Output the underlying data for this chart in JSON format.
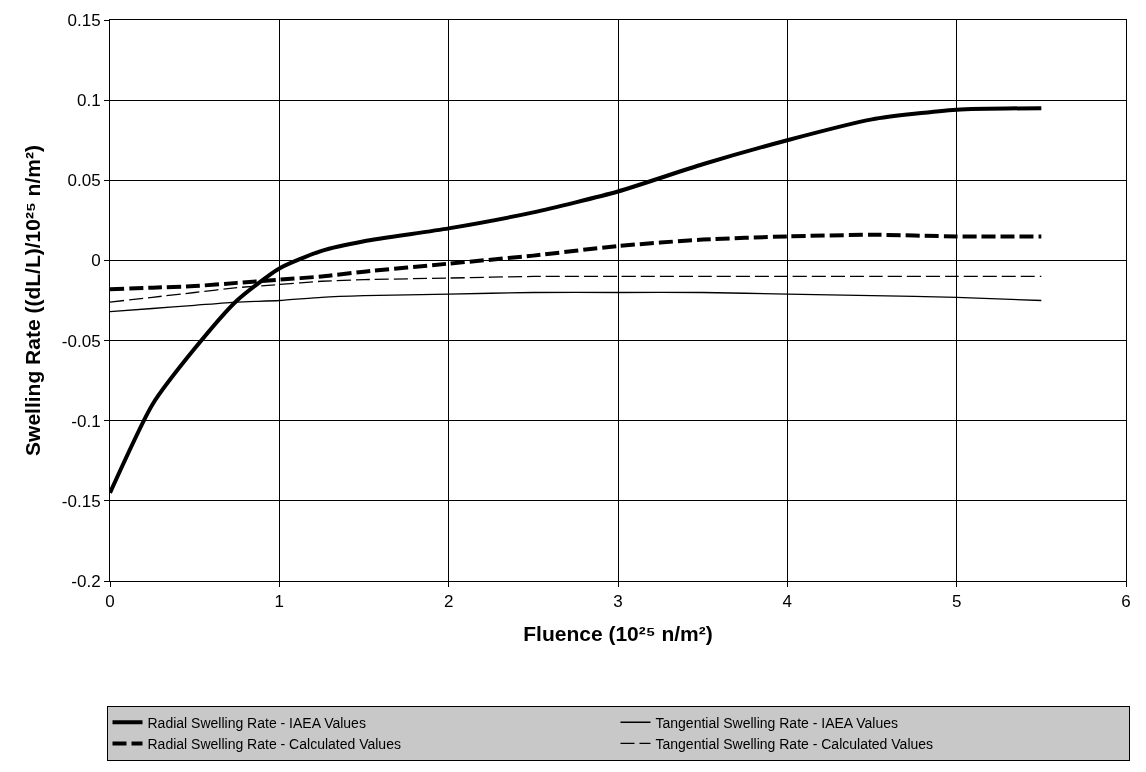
{
  "chart_data": {
    "type": "line",
    "xlabel": "Fluence (10²⁵ n/m²)",
    "ylabel": "Swelling Rate ((dL/L)/10²⁵ n/m²)",
    "xlim": [
      0,
      6
    ],
    "xticks": [
      0,
      1,
      2,
      3,
      4,
      5,
      6
    ],
    "ylim": [
      -0.2,
      0.15
    ],
    "yticks": [
      -0.2,
      -0.15,
      -0.1,
      -0.05,
      0,
      0.05,
      0.1,
      0.15
    ],
    "grid": true,
    "legend": "bottom",
    "x": [
      0,
      0.25,
      0.5,
      0.75,
      1,
      1.25,
      1.5,
      2,
      2.5,
      3,
      3.5,
      4,
      4.5,
      5,
      5.5
    ],
    "series": [
      {
        "name": "Radial Swelling Rate - IAEA Values",
        "color": "#000000",
        "line_style": "solid",
        "values": [
          -0.145,
          -0.09,
          -0.055,
          -0.025,
          -0.005,
          0.006,
          0.012,
          0.02,
          0.03,
          0.043,
          0.06,
          0.075,
          0.088,
          0.094,
          0.095
        ]
      },
      {
        "name": "Tangential Swelling Rate - IAEA Values",
        "color": "#000000",
        "line_style": "solid",
        "values": [
          -0.032,
          -0.03,
          -0.028,
          -0.026,
          -0.025,
          -0.023,
          -0.022,
          -0.021,
          -0.02,
          -0.02,
          -0.02,
          -0.021,
          -0.022,
          -0.023,
          -0.025
        ]
      },
      {
        "name": "Radial Swelling Rate - Calculated Values",
        "color": "#000000",
        "line_style": "dashed",
        "values": [
          -0.018,
          -0.017,
          -0.016,
          -0.014,
          -0.012,
          -0.01,
          -0.007,
          -0.002,
          0.003,
          0.009,
          0.013,
          0.015,
          0.016,
          0.015,
          0.015
        ]
      },
      {
        "name": "Tangential Swelling Rate - Calculated Values",
        "color": "#000000",
        "line_style": "dashed",
        "values": [
          -0.026,
          -0.023,
          -0.02,
          -0.017,
          -0.015,
          -0.013,
          -0.012,
          -0.011,
          -0.01,
          -0.01,
          -0.01,
          -0.01,
          -0.01,
          -0.01,
          -0.01
        ]
      }
    ]
  }
}
